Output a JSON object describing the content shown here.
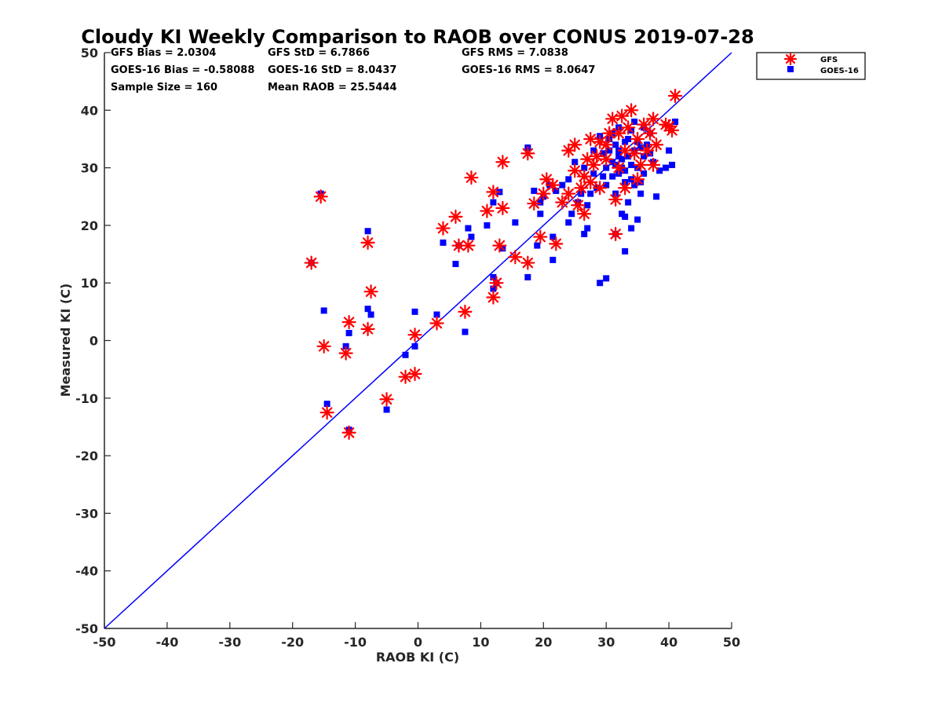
{
  "chart_data": {
    "type": "scatter",
    "title": "Cloudy KI Weekly Comparison to RAOB over CONUS 2019-07-28",
    "xlabel": "RAOB KI (C)",
    "ylabel": "Measured KI (C)",
    "xlim": [
      -50,
      50
    ],
    "ylim": [
      -50,
      50
    ],
    "x_ticks": [
      "-50",
      "-40",
      "-30",
      "-20",
      "-10",
      "0",
      "10",
      "20",
      "30",
      "40",
      "50"
    ],
    "y_ticks": [
      "-50",
      "-40",
      "-30",
      "-20",
      "-10",
      "0",
      "10",
      "20",
      "30",
      "40",
      "50"
    ],
    "grid": false,
    "legend_position": "outside top-right",
    "stats": [
      "GFS Bias = 2.0304",
      "GFS StD = 6.7866",
      "GFS RMS = 7.0838",
      "GOES-16 Bias = -0.58088",
      "GOES-16 StD = 8.0437",
      "GOES-16 RMS = 8.0647",
      "Sample Size = 160",
      "Mean RAOB = 25.5444"
    ],
    "reference_line": {
      "name": "1:1 line",
      "x": [
        -50,
        50
      ],
      "y": [
        -50,
        50
      ],
      "color": "#0000ff"
    },
    "series": [
      {
        "name": "GFS",
        "marker": "asterisk",
        "color": "#ff0000",
        "points": [
          [
            -15.5,
            25.0
          ],
          [
            -17.0,
            13.5
          ],
          [
            -8.0,
            17.0
          ],
          [
            -7.5,
            8.5
          ],
          [
            -11.0,
            3.2
          ],
          [
            -8.0,
            2.0
          ],
          [
            -15.0,
            -1.0
          ],
          [
            -11.5,
            -2.2
          ],
          [
            -14.5,
            -12.5
          ],
          [
            -11.0,
            -16.0
          ],
          [
            -5.0,
            -10.2
          ],
          [
            -2.0,
            -6.3
          ],
          [
            -0.5,
            -5.8
          ],
          [
            -0.5,
            1.0
          ],
          [
            3.0,
            3.0
          ],
          [
            7.5,
            5.0
          ],
          [
            4.0,
            19.5
          ],
          [
            6.0,
            21.5
          ],
          [
            6.5,
            16.5
          ],
          [
            8.0,
            16.5
          ],
          [
            8.5,
            28.3
          ],
          [
            11.0,
            22.5
          ],
          [
            12.0,
            25.8
          ],
          [
            12.0,
            7.5
          ],
          [
            12.5,
            10.0
          ],
          [
            13.0,
            16.5
          ],
          [
            13.5,
            23.0
          ],
          [
            13.5,
            31.0
          ],
          [
            15.5,
            14.5
          ],
          [
            17.5,
            13.5
          ],
          [
            17.5,
            32.5
          ],
          [
            18.5,
            23.8
          ],
          [
            19.5,
            18.0
          ],
          [
            20.0,
            25.5
          ],
          [
            20.5,
            28.0
          ],
          [
            21.5,
            27.0
          ],
          [
            22.0,
            16.8
          ],
          [
            23.0,
            24.0
          ],
          [
            24.0,
            25.5
          ],
          [
            24.0,
            33.0
          ],
          [
            25.0,
            34.0
          ],
          [
            25.0,
            29.5
          ],
          [
            25.5,
            23.5
          ],
          [
            26.0,
            26.5
          ],
          [
            26.5,
            28.5
          ],
          [
            26.5,
            22.0
          ],
          [
            27.0,
            31.5
          ],
          [
            27.5,
            35.0
          ],
          [
            27.5,
            27.5
          ],
          [
            28.0,
            30.5
          ],
          [
            29.0,
            26.5
          ],
          [
            29.0,
            34.5
          ],
          [
            30.0,
            31.5
          ],
          [
            30.5,
            36.0
          ],
          [
            31.0,
            38.5
          ],
          [
            31.5,
            24.5
          ],
          [
            31.5,
            18.5
          ],
          [
            32.0,
            30.0
          ],
          [
            32.5,
            39.0
          ],
          [
            33.0,
            26.5
          ],
          [
            33.5,
            37.0
          ],
          [
            34.0,
            40.0
          ],
          [
            34.5,
            32.5
          ],
          [
            35.0,
            35.0
          ],
          [
            35.5,
            30.5
          ],
          [
            36.0,
            37.5
          ],
          [
            36.5,
            33.0
          ],
          [
            37.0,
            36.0
          ],
          [
            37.5,
            38.5
          ],
          [
            37.5,
            30.5
          ],
          [
            38.0,
            34.0
          ],
          [
            39.5,
            37.5
          ],
          [
            40.0,
            37.2
          ],
          [
            40.5,
            36.5
          ],
          [
            41.0,
            42.5
          ],
          [
            30.0,
            34.0
          ],
          [
            33.0,
            33.0
          ],
          [
            35.0,
            28.0
          ],
          [
            28.5,
            32.0
          ],
          [
            32.0,
            36.0
          ]
        ]
      },
      {
        "name": "GOES-16",
        "marker": "square",
        "color": "#0000ff",
        "points": [
          [
            -15.5,
            25.5
          ],
          [
            -17.0,
            13.5
          ],
          [
            -8.0,
            19.0
          ],
          [
            -8.0,
            5.5
          ],
          [
            -7.5,
            4.5
          ],
          [
            -15.0,
            5.2
          ],
          [
            -11.0,
            1.3
          ],
          [
            -11.5,
            -1.0
          ],
          [
            -14.5,
            -11.0
          ],
          [
            -11.0,
            -15.5
          ],
          [
            -5.0,
            -12.0
          ],
          [
            -2.0,
            -2.5
          ],
          [
            -0.5,
            -1.0
          ],
          [
            -0.5,
            5.0
          ],
          [
            3.0,
            4.5
          ],
          [
            4.0,
            17.0
          ],
          [
            6.0,
            13.3
          ],
          [
            6.5,
            16.5
          ],
          [
            7.5,
            1.5
          ],
          [
            8.0,
            19.5
          ],
          [
            8.5,
            18.0
          ],
          [
            11.0,
            20.0
          ],
          [
            12.0,
            24.0
          ],
          [
            12.0,
            11.0
          ],
          [
            12.0,
            9.0
          ],
          [
            12.5,
            10.0
          ],
          [
            13.0,
            25.8
          ],
          [
            13.5,
            16.0
          ],
          [
            15.5,
            20.5
          ],
          [
            17.5,
            11.0
          ],
          [
            17.5,
            33.5
          ],
          [
            18.5,
            26.0
          ],
          [
            19.0,
            16.5
          ],
          [
            19.5,
            22.0
          ],
          [
            19.5,
            24.0
          ],
          [
            20.0,
            25.0
          ],
          [
            21.0,
            27.0
          ],
          [
            21.5,
            18.0
          ],
          [
            21.5,
            14.0
          ],
          [
            22.0,
            26.0
          ],
          [
            23.0,
            27.0
          ],
          [
            24.0,
            20.5
          ],
          [
            24.0,
            28.0
          ],
          [
            24.5,
            22.0
          ],
          [
            25.0,
            31.0
          ],
          [
            25.5,
            24.0
          ],
          [
            26.0,
            25.5
          ],
          [
            26.5,
            30.0
          ],
          [
            26.5,
            18.5
          ],
          [
            27.0,
            23.5
          ],
          [
            27.0,
            19.5
          ],
          [
            27.5,
            25.5
          ],
          [
            28.0,
            33.0
          ],
          [
            28.5,
            26.5
          ],
          [
            29.0,
            35.5
          ],
          [
            29.0,
            10.0
          ],
          [
            29.5,
            28.5
          ],
          [
            30.0,
            30.0
          ],
          [
            30.0,
            10.8
          ],
          [
            30.5,
            33.0
          ],
          [
            31.0,
            31.0
          ],
          [
            31.0,
            36.0
          ],
          [
            31.5,
            25.5
          ],
          [
            31.5,
            18.5
          ],
          [
            32.0,
            29.0
          ],
          [
            32.0,
            33.0
          ],
          [
            32.5,
            22.0
          ],
          [
            32.5,
            31.5
          ],
          [
            33.0,
            21.5
          ],
          [
            33.0,
            15.5
          ],
          [
            33.0,
            27.5
          ],
          [
            33.5,
            35.0
          ],
          [
            33.5,
            24.0
          ],
          [
            34.0,
            19.5
          ],
          [
            34.0,
            28.0
          ],
          [
            34.5,
            33.0
          ],
          [
            34.5,
            38.0
          ],
          [
            35.0,
            30.0
          ],
          [
            35.0,
            21.0
          ],
          [
            35.5,
            25.5
          ],
          [
            35.5,
            27.5
          ],
          [
            36.0,
            32.0
          ],
          [
            36.0,
            37.0
          ],
          [
            36.5,
            34.0
          ],
          [
            37.0,
            36.0
          ],
          [
            37.5,
            31.0
          ],
          [
            38.0,
            25.0
          ],
          [
            38.5,
            29.5
          ],
          [
            39.5,
            30.0
          ],
          [
            40.0,
            33.0
          ],
          [
            40.5,
            30.5
          ],
          [
            41.0,
            38.0
          ],
          [
            30.5,
            35.0
          ],
          [
            31.5,
            34.0
          ],
          [
            32.0,
            32.0
          ],
          [
            32.5,
            30.0
          ],
          [
            33.0,
            34.5
          ],
          [
            33.5,
            32.0
          ],
          [
            34.0,
            30.5
          ],
          [
            34.5,
            27.0
          ],
          [
            35.0,
            34.5
          ],
          [
            36.0,
            29.0
          ],
          [
            31.0,
            28.5
          ],
          [
            30.0,
            27.0
          ],
          [
            28.0,
            29.0
          ],
          [
            29.5,
            32.5
          ],
          [
            32.0,
            37.0
          ],
          [
            34.0,
            36.5
          ],
          [
            35.5,
            33.5
          ],
          [
            37.0,
            32.5
          ],
          [
            33.0,
            29.5
          ],
          [
            31.5,
            30.5
          ]
        ]
      }
    ]
  }
}
